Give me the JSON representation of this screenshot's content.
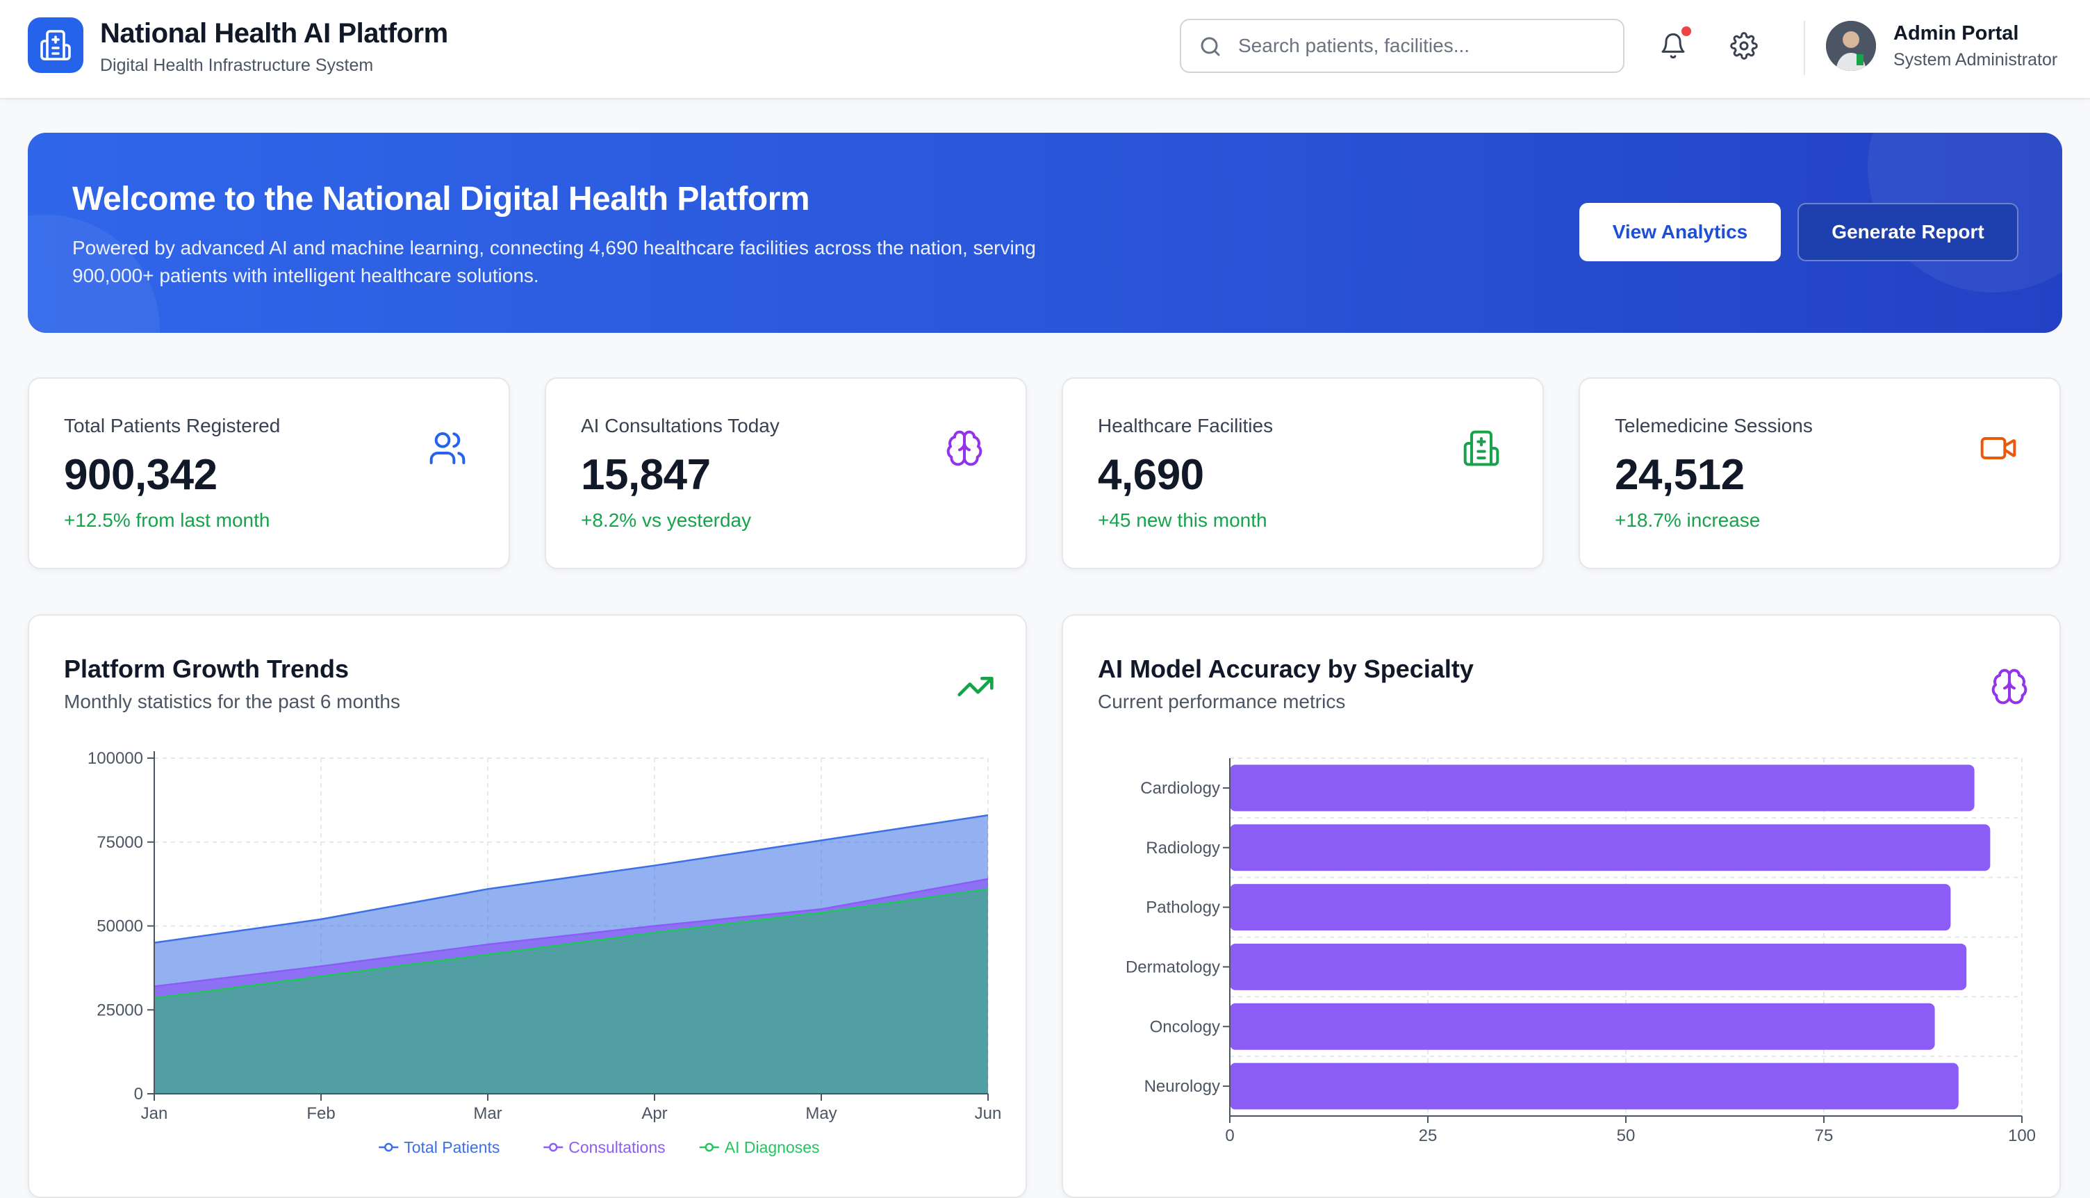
{
  "header": {
    "title": "National Health AI Platform",
    "subtitle": "Digital Health Infrastructure System",
    "search_placeholder": "Search patients, facilities...",
    "user_name": "Admin Portal",
    "user_role": "System Administrator",
    "icons": [
      "hospital-icon",
      "search-icon",
      "bell-icon",
      "gear-icon"
    ]
  },
  "banner": {
    "title": "Welcome to the National Digital Health Platform",
    "text": "Powered by advanced AI and machine learning, connecting 4,690 healthcare facilities across the nation, serving 900,000+ patients with intelligent healthcare solutions.",
    "view_analytics_label": "View Analytics",
    "generate_report_label": "Generate Report"
  },
  "stats": [
    {
      "label": "Total Patients Registered",
      "value": "900,342",
      "change": "+12.5% from last month",
      "icon": "users-icon",
      "color": "#2563eb"
    },
    {
      "label": "AI Consultations Today",
      "value": "15,847",
      "change": "+8.2% vs yesterday",
      "icon": "brain-icon",
      "color": "#9333ea"
    },
    {
      "label": "Healthcare Facilities",
      "value": "4,690",
      "change": "+45 new this month",
      "icon": "hospital-icon",
      "color": "#16a34a"
    },
    {
      "label": "Telemedicine Sessions",
      "value": "24,512",
      "change": "+18.7% increase",
      "icon": "video-icon",
      "color": "#ea580c"
    }
  ],
  "growth": {
    "title": "Platform Growth Trends",
    "subtitle": "Monthly statistics for the past 6 months",
    "icon": "trending-up-icon"
  },
  "accuracy": {
    "title": "AI Model Accuracy by Specialty",
    "subtitle": "Current performance metrics",
    "icon": "brain-icon"
  },
  "chart_data": [
    {
      "type": "area",
      "x": [
        "Jan",
        "Feb",
        "Mar",
        "Apr",
        "May",
        "Jun"
      ],
      "ylim": [
        0,
        100000
      ],
      "yticks": [
        0,
        25000,
        50000,
        75000,
        100000
      ],
      "grid": true,
      "legend_position": "bottom",
      "series": [
        {
          "name": "Total Patients",
          "values": [
            45000,
            52000,
            61000,
            68000,
            75500,
            83000
          ],
          "color": "#3b6fe6"
        },
        {
          "name": "Consultations",
          "values": [
            32000,
            38000,
            44500,
            50000,
            55000,
            64000
          ],
          "color": "#8b5cf6"
        },
        {
          "name": "AI Diagnoses",
          "values": [
            28500,
            35000,
            41500,
            48000,
            54000,
            61000
          ],
          "color": "#22c55e"
        }
      ]
    },
    {
      "type": "bar",
      "orientation": "horizontal",
      "categories": [
        "Cardiology",
        "Radiology",
        "Pathology",
        "Dermatology",
        "Oncology",
        "Neurology"
      ],
      "values": [
        94,
        96,
        91,
        93,
        89,
        92
      ],
      "xlim": [
        0,
        100
      ],
      "xticks": [
        0,
        25,
        50,
        75,
        100
      ],
      "grid": true,
      "color": "#8b5cf6"
    }
  ]
}
